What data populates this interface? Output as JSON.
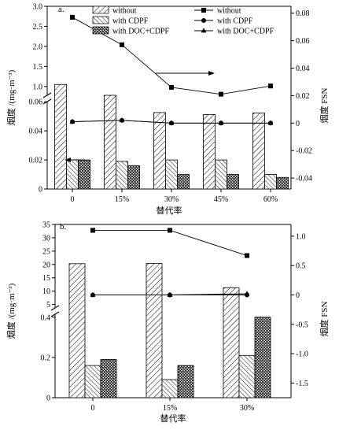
{
  "chart_data": [
    {
      "panel_label": "a.",
      "type": "bar+line",
      "categories": [
        "0",
        "15%",
        "30%",
        "45%",
        "60%"
      ],
      "xlabel": "替代率",
      "ylabel": "烟度 /(mg·m⁻³)",
      "y2label": "烟度 FSN",
      "legend": {
        "bars": [
          "without",
          "with CDPF",
          "with DOC+CDPF"
        ],
        "lines": [
          "without",
          "with CDPF",
          "with DOC+CDPF"
        ]
      },
      "y_left_ticks_lower": [
        "0",
        "0.02",
        "0.04",
        "0.06"
      ],
      "y_left_ticks_upper": [
        "1.0",
        "1.5",
        "2.0",
        "2.5",
        "3.0"
      ],
      "y_left_lower_range": [
        0,
        0.065
      ],
      "y_left_upper_range": [
        0.8,
        3.0
      ],
      "y_right_ticks": [
        "-0.04",
        "-0.02",
        "0",
        "0.02",
        "0.04",
        "0.06",
        "0.08"
      ],
      "y_right_range": [
        -0.048,
        0.085
      ],
      "bar_series": [
        {
          "name": "without",
          "values": [
            1.05,
            0.78,
            0.35,
            0.3,
            0.34
          ]
        },
        {
          "name": "with CDPF",
          "values": [
            0.02,
            0.019,
            0.02,
            0.02,
            0.01
          ]
        },
        {
          "name": "with DOC+CDPF",
          "values": [
            0.02,
            0.016,
            0.01,
            0.01,
            0.008
          ]
        }
      ],
      "line_series": [
        {
          "name": "without",
          "marker": "square",
          "values": [
            0.077,
            0.057,
            0.026,
            0.021,
            0.027
          ]
        },
        {
          "name": "with CDPF",
          "marker": "circle",
          "values": [
            0.001,
            0.002,
            0.0,
            0.0,
            0.0
          ]
        },
        {
          "name": "with DOC+CDPF",
          "marker": "triangle",
          "values": [
            0.001,
            0.002,
            0.0,
            0.0,
            0.0
          ]
        }
      ],
      "arrows": [
        "right",
        "left"
      ]
    },
    {
      "panel_label": "b.",
      "type": "bar+line",
      "categories": [
        "0",
        "15%",
        "30%"
      ],
      "xlabel": "替代率",
      "ylabel": "烟度 /(mg·m⁻³)",
      "y2label": "烟度 FSN",
      "y_left_ticks_lower": [
        "0",
        "0.2",
        "0.4"
      ],
      "y_left_ticks_upper": [
        "5",
        "10",
        "15",
        "20",
        "25",
        "30",
        "35"
      ],
      "y_left_lower_range": [
        0,
        0.45
      ],
      "y_left_upper_range": [
        4,
        35
      ],
      "y_right_ticks": [
        "-1.5",
        "-1.0",
        "-0.5",
        "0",
        "0.5",
        "1.0"
      ],
      "y_right_range": [
        -1.75,
        1.2
      ],
      "bar_series": [
        {
          "name": "without",
          "values": [
            20.3,
            20.4,
            11.3
          ]
        },
        {
          "name": "with CDPF",
          "values": [
            0.16,
            0.09,
            0.21
          ]
        },
        {
          "name": "with DOC+CDPF",
          "values": [
            0.19,
            0.16,
            0.4
          ]
        }
      ],
      "line_series": [
        {
          "name": "without",
          "marker": "square",
          "values": [
            1.1,
            1.1,
            0.67
          ]
        },
        {
          "name": "with CDPF",
          "marker": "circle",
          "values": [
            0.0,
            0.0,
            0.0
          ]
        },
        {
          "name": "with DOC+CDPF",
          "marker": "triangle",
          "values": [
            0.0,
            0.0,
            0.02
          ]
        }
      ]
    }
  ]
}
